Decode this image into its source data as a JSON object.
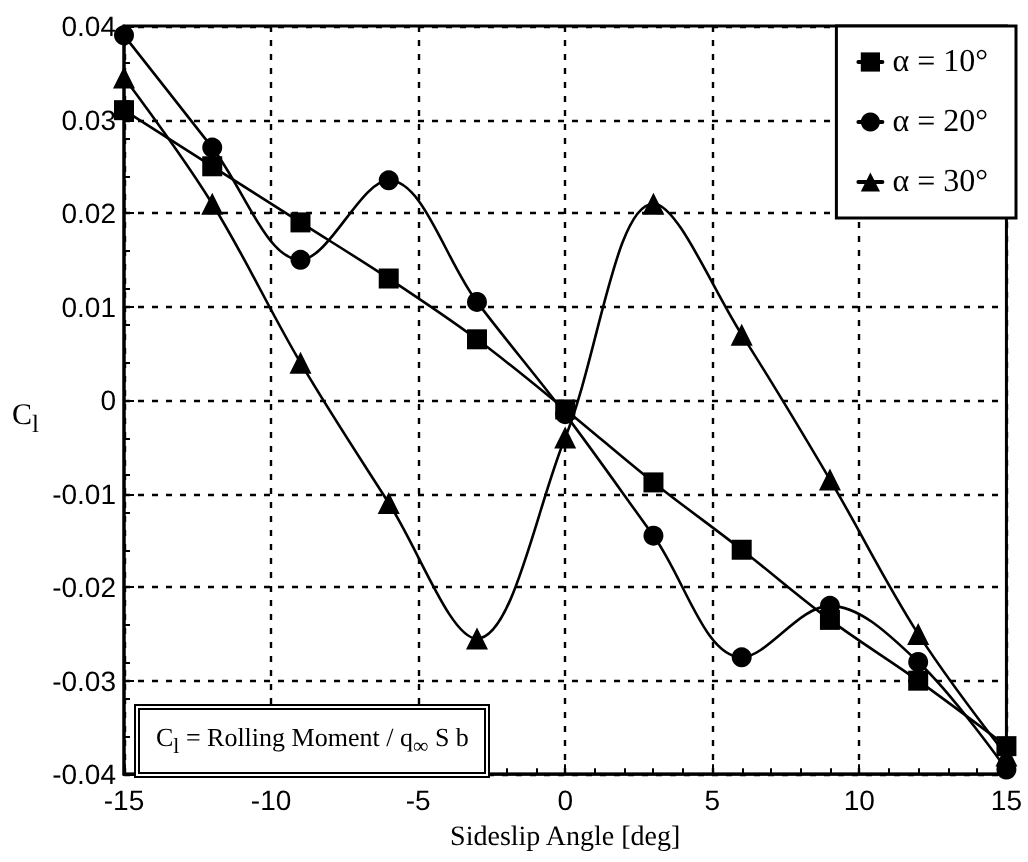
{
  "chart_data": {
    "type": "line",
    "xlabel": "Sideslip Angle [deg]",
    "ylabel": "C$_{l}$",
    "x": [
      -15,
      -12,
      -9,
      -6,
      -3,
      0,
      3,
      6,
      9,
      12,
      15
    ],
    "series": [
      {
        "name": "α = 10°",
        "color": "#000000",
        "marker": "square",
        "values": [
          0.031,
          0.025,
          0.019,
          0.013,
          0.0065,
          -0.001,
          -0.0088,
          -0.016,
          -0.0235,
          -0.03,
          -0.037
        ]
      },
      {
        "name": "α = 20°",
        "color": "#000000",
        "marker": "circle",
        "values": [
          0.039,
          0.027,
          0.015,
          0.0235,
          0.0105,
          -0.0015,
          -0.0145,
          -0.0275,
          -0.022,
          -0.028,
          -0.0395
        ]
      },
      {
        "name": "α = 30°",
        "color": "#000000",
        "marker": "triangle",
        "values": [
          0.0345,
          0.021,
          0.004,
          -0.011,
          -0.0255,
          -0.004,
          0.021,
          0.007,
          -0.0085,
          -0.025,
          -0.038
        ]
      }
    ],
    "xlim": [
      -15,
      15
    ],
    "xticks": [
      -15,
      -10,
      -5,
      0,
      5,
      10,
      15
    ],
    "ylim": [
      -0.04,
      0.04
    ],
    "yticks": [
      -0.04,
      -0.03,
      -0.02,
      -0.01,
      0,
      0.01,
      0.02,
      0.03,
      0.04
    ],
    "grid": true,
    "legend": "top right",
    "line_style": "solid",
    "annotations": [
      "C$_{l}$ = Rolling Moment / q$_{∞}$ S b"
    ]
  }
}
